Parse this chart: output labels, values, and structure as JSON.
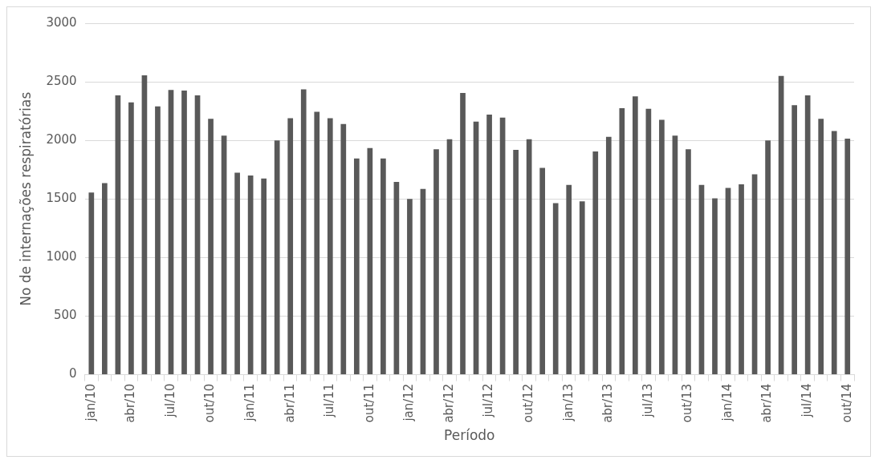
{
  "chart_data": {
    "type": "bar",
    "xlabel": "Período",
    "ylabel": "No de internações respiratórias",
    "categories": [
      "jan/10",
      null,
      null,
      "abr/10",
      null,
      null,
      "jul/10",
      null,
      null,
      "out/10",
      null,
      null,
      "jan/11",
      null,
      null,
      "abr/11",
      null,
      null,
      "jul/11",
      null,
      null,
      "out/11",
      null,
      null,
      "jan/12",
      null,
      null,
      "abr/12",
      null,
      null,
      "jul/12",
      null,
      null,
      "out/12",
      null,
      null,
      "jan/13",
      null,
      null,
      "abr/13",
      null,
      null,
      "jul/13",
      null,
      null,
      "out/13",
      null,
      null,
      "jan/14",
      null,
      null,
      "abr/14",
      null,
      null,
      "jul/14",
      null,
      null,
      "out/14"
    ],
    "values": [
      1555,
      1635,
      2385,
      2325,
      2555,
      2290,
      2430,
      2425,
      2385,
      2185,
      2040,
      1725,
      1700,
      1675,
      2000,
      2190,
      2435,
      2245,
      2190,
      2140,
      1845,
      1935,
      1845,
      1645,
      1500,
      1585,
      1925,
      2010,
      2405,
      2160,
      2220,
      2195,
      1920,
      2010,
      1765,
      1465,
      1620,
      1480,
      1905,
      2030,
      2275,
      2375,
      2270,
      2175,
      2040,
      1925,
      1620,
      1505,
      1595,
      1625,
      1710,
      2000,
      2550,
      2300,
      2385,
      2185,
      2080,
      2015
    ],
    "color": "#595959",
    "ylim": [
      0,
      3000
    ],
    "yticks": [
      0,
      500,
      1000,
      1500,
      2000,
      2500,
      3000
    ],
    "grid": "y",
    "legend": false
  }
}
